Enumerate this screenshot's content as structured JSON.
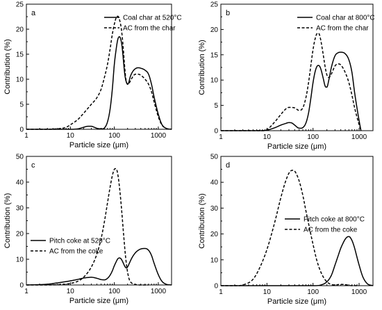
{
  "chart_data": [
    {
      "type": "line",
      "panel_label": "a",
      "xlabel": "Particle size (μm)",
      "ylabel": "Contribution (%)",
      "xscale": "log",
      "xlim": [
        1,
        2000
      ],
      "ylim": [
        0,
        25
      ],
      "xticks": [
        1,
        10,
        100,
        1000
      ],
      "xtick_labels": [
        "1",
        "10",
        "100",
        "1000"
      ],
      "yticks": [
        0,
        5,
        10,
        15,
        20,
        25
      ],
      "ytick_labels": [
        "0",
        "5",
        "10",
        "15",
        "20",
        "25"
      ],
      "legend_position": "top-right",
      "series": [
        {
          "name": "Coal char at 520°C",
          "style": "solid",
          "x": [
            1,
            10,
            15,
            20,
            25,
            30,
            35,
            40,
            50,
            60,
            70,
            80,
            90,
            100,
            110,
            120,
            130,
            140,
            150,
            160,
            170,
            180,
            190,
            200,
            210,
            230,
            260,
            300,
            350,
            400,
            500,
            600,
            700,
            800,
            1000,
            1200,
            1500,
            2000
          ],
          "y": [
            0,
            0,
            0.1,
            0.4,
            0.6,
            0.6,
            0.4,
            0.2,
            0.1,
            0.3,
            1.5,
            4,
            8,
            13,
            16,
            18,
            18.5,
            18,
            16.5,
            14,
            11.5,
            10,
            9.3,
            9,
            9.2,
            10.5,
            11.5,
            12.1,
            12.3,
            12.2,
            11.8,
            11,
            9,
            6.5,
            3,
            1,
            0.2,
            0
          ]
        },
        {
          "name": "AC from the char",
          "style": "dashed",
          "x": [
            1,
            5,
            8,
            10,
            15,
            20,
            30,
            40,
            50,
            60,
            70,
            80,
            90,
            100,
            110,
            120,
            130,
            140,
            150,
            160,
            170,
            180,
            190,
            200,
            220,
            250,
            300,
            350,
            400,
            500,
            600,
            700,
            800,
            1000,
            1200,
            1500,
            2000
          ],
          "y": [
            0,
            0.1,
            0.4,
            0.9,
            2,
            3.2,
            5,
            6.3,
            8,
            10.5,
            13,
            16,
            19,
            21,
            22.3,
            22.6,
            22,
            20.8,
            18.8,
            16,
            13,
            10.5,
            9.3,
            9,
            9.3,
            10.2,
            11,
            11,
            10.8,
            10,
            9,
            7.5,
            5.5,
            2.5,
            0.9,
            0.2,
            0
          ]
        }
      ]
    },
    {
      "type": "line",
      "panel_label": "b",
      "xlabel": "Particle size (μm)",
      "ylabel": "Contribution (%)",
      "xscale": "log",
      "xlim": [
        1,
        2000
      ],
      "ylim": [
        0,
        25
      ],
      "xticks": [
        1,
        10,
        100,
        1000
      ],
      "xtick_labels": [
        "1",
        "10",
        "100",
        "1000"
      ],
      "yticks": [
        0,
        5,
        10,
        15,
        20,
        25
      ],
      "ytick_labels": [
        "0",
        "5",
        "10",
        "15",
        "20",
        "25"
      ],
      "legend_position": "top-right",
      "series": [
        {
          "name": "Coal char at 800°C",
          "style": "solid",
          "x": [
            1,
            8,
            10,
            15,
            20,
            25,
            30,
            35,
            40,
            50,
            60,
            70,
            80,
            90,
            100,
            110,
            120,
            130,
            140,
            150,
            160,
            170,
            180,
            190,
            200,
            220,
            250,
            300,
            350,
            400,
            500,
            600,
            700,
            800,
            1000,
            1100
          ],
          "y": [
            0,
            0,
            0.1,
            0.6,
            1.1,
            1.4,
            1.6,
            1.5,
            1.1,
            0.5,
            0.6,
            1.5,
            3.5,
            6.5,
            9.5,
            11.5,
            12.6,
            12.9,
            12.7,
            12,
            11,
            10,
            9,
            8.6,
            8.6,
            10,
            12.5,
            14.8,
            15.4,
            15.5,
            15.2,
            14,
            11.5,
            7.5,
            2,
            0
          ]
        },
        {
          "name": "AC from the char",
          "style": "dashed",
          "x": [
            1,
            8,
            10,
            15,
            20,
            25,
            30,
            40,
            50,
            60,
            70,
            80,
            90,
            100,
            110,
            120,
            130,
            140,
            150,
            160,
            170,
            180,
            200,
            220,
            250,
            300,
            350,
            400,
            500,
            600,
            700,
            800,
            1000,
            1100
          ],
          "y": [
            0,
            0,
            0.2,
            1.8,
            3.2,
            4.2,
            4.6,
            4.5,
            4,
            4.5,
            6.5,
            9.5,
            13,
            16,
            18,
            19.1,
            19.3,
            18.8,
            17.5,
            16,
            14.5,
            13,
            11,
            10.5,
            11.2,
            12.8,
            13.2,
            13,
            11.5,
            9.5,
            7,
            4.5,
            1.2,
            0
          ]
        }
      ]
    },
    {
      "type": "line",
      "panel_label": "c",
      "xlabel": "Particle size (μm)",
      "ylabel": "Contribution (%)",
      "xscale": "log",
      "xlim": [
        1,
        2000
      ],
      "ylim": [
        0,
        50
      ],
      "xticks": [
        1,
        10,
        100,
        1000
      ],
      "xtick_labels": [
        "1",
        "10",
        "100",
        "1000"
      ],
      "yticks": [
        0,
        10,
        20,
        30,
        40,
        50
      ],
      "ytick_labels": [
        "0",
        "10",
        "20",
        "30",
        "40",
        "50"
      ],
      "legend_position": "middle-left",
      "series": [
        {
          "name": "Pitch coke at 520°C",
          "style": "solid",
          "x": [
            1,
            3,
            5,
            10,
            15,
            20,
            25,
            30,
            40,
            50,
            60,
            70,
            80,
            90,
            100,
            110,
            120,
            130,
            140,
            150,
            160,
            170,
            180,
            190,
            200,
            220,
            250,
            300,
            350,
            400,
            500,
            600,
            700,
            800,
            1000,
            1200,
            1500,
            2000
          ],
          "y": [
            0,
            0.3,
            0.8,
            1.6,
            2.2,
            2.7,
            2.9,
            3,
            2.6,
            2.1,
            2,
            2.6,
            3.8,
            5.5,
            7.5,
            9,
            10.2,
            10.5,
            10.3,
            9.5,
            8.5,
            7.5,
            6.8,
            6.6,
            7,
            8.5,
            10.5,
            12.5,
            13.5,
            14,
            14.2,
            13.5,
            11.5,
            8.5,
            4,
            1.5,
            0.3,
            0
          ]
        },
        {
          "name": "AC from the coke",
          "style": "dashed",
          "x": [
            1,
            5,
            10,
            15,
            20,
            30,
            40,
            50,
            60,
            70,
            80,
            90,
            100,
            110,
            120,
            130,
            140,
            150,
            160,
            180,
            200,
            220,
            250,
            300,
            400,
            500,
            600
          ],
          "y": [
            0,
            0.1,
            0.6,
            1.5,
            3,
            7,
            12,
            18,
            25,
            32,
            38,
            42.5,
            45,
            45.2,
            43,
            38.5,
            33,
            27,
            21,
            11,
            5,
            2,
            0.7,
            0.2,
            0,
            0,
            0
          ]
        }
      ]
    },
    {
      "type": "line",
      "panel_label": "d",
      "xlabel": "Particle size (μm)",
      "ylabel": "Contribution (%)",
      "xscale": "log",
      "xlim": [
        1,
        2000
      ],
      "ylim": [
        0,
        50
      ],
      "xticks": [
        1,
        10,
        100,
        1000
      ],
      "xtick_labels": [
        "1",
        "10",
        "100",
        "1000"
      ],
      "yticks": [
        0,
        10,
        20,
        30,
        40,
        50
      ],
      "ytick_labels": [
        "0",
        "10",
        "20",
        "30",
        "40",
        "50"
      ],
      "legend_position": "middle-right",
      "series": [
        {
          "name": "Pitch coke at 800°C",
          "style": "solid",
          "x": [
            1,
            100,
            150,
            200,
            250,
            300,
            350,
            400,
            450,
            500,
            550,
            600,
            700,
            800,
            900,
            1000,
            1200,
            1500,
            2000
          ],
          "y": [
            0,
            0,
            0.3,
            1.5,
            4,
            8,
            11.5,
            14.5,
            16.5,
            18,
            18.8,
            19,
            17.5,
            14.5,
            11,
            8,
            3.5,
            0.8,
            0
          ]
        },
        {
          "name": "AC from the coke",
          "style": "dashed",
          "x": [
            1,
            3,
            5,
            7,
            10,
            15,
            20,
            25,
            30,
            35,
            40,
            50,
            60,
            70,
            80,
            100,
            120,
            150,
            200,
            300,
            400,
            500,
            700,
            1000
          ],
          "y": [
            0,
            0.3,
            2.5,
            7,
            14,
            25,
            34,
            40,
            43.5,
            44.6,
            44.3,
            40.5,
            35,
            29,
            24,
            16,
            10,
            5,
            1.5,
            0.3,
            0.5,
            0.4,
            0,
            0
          ]
        }
      ]
    }
  ]
}
